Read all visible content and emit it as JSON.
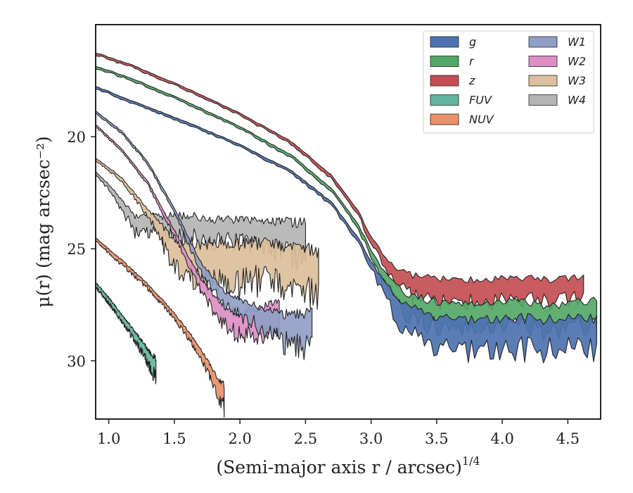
{
  "chart_data": {
    "type": "area",
    "title": "",
    "xlabel": "(Semi-major axis r / arcsec)",
    "xlabel_superscript": "1/4",
    "ylabel": "μ(r) (mag arcsec⁻²)",
    "xlim": [
      0.9,
      4.75
    ],
    "ylim": [
      32.6,
      15.0
    ],
    "y_inverted": true,
    "grid": false,
    "legend_position": "top-right",
    "legend_columns": 2,
    "xticks": [
      1.0,
      1.5,
      2.0,
      2.5,
      3.0,
      3.5,
      4.0,
      4.5
    ],
    "xtick_labels": [
      "1.0",
      "1.5",
      "2.0",
      "2.5",
      "3.0",
      "3.5",
      "4.0",
      "4.5"
    ],
    "yticks": [
      20,
      25,
      30
    ],
    "ytick_labels": [
      "20",
      "25",
      "30"
    ],
    "series": [
      {
        "name": "g",
        "color": "#4c72b0",
        "x_start": 0.9,
        "x_end": 4.72,
        "x": [
          0.9,
          1.2,
          1.6,
          2.0,
          2.4,
          2.7,
          2.9,
          3.0,
          3.1,
          3.2,
          3.3,
          3.5,
          3.8,
          4.1,
          4.4,
          4.72
        ],
        "y": [
          17.8,
          18.5,
          19.4,
          20.4,
          21.6,
          23.0,
          24.6,
          25.7,
          26.8,
          27.6,
          28.3,
          28.8,
          28.9,
          28.8,
          28.9,
          28.8
        ],
        "width": [
          0.1,
          0.1,
          0.1,
          0.1,
          0.12,
          0.15,
          0.2,
          0.3,
          0.6,
          1.0,
          1.3,
          1.4,
          1.4,
          1.4,
          1.4,
          1.4
        ]
      },
      {
        "name": "r",
        "color": "#55a868",
        "x_start": 0.9,
        "x_end": 4.72,
        "x": [
          0.9,
          1.2,
          1.6,
          2.0,
          2.4,
          2.7,
          2.9,
          3.0,
          3.1,
          3.2,
          3.3,
          3.5,
          3.8,
          4.1,
          4.4,
          4.72
        ],
        "y": [
          16.9,
          17.5,
          18.5,
          19.6,
          20.9,
          22.4,
          24.0,
          25.2,
          26.3,
          27.1,
          27.6,
          27.9,
          28.0,
          27.9,
          28.1,
          27.8
        ],
        "width": [
          0.1,
          0.1,
          0.1,
          0.1,
          0.12,
          0.15,
          0.2,
          0.3,
          0.5,
          0.8,
          1.0,
          1.1,
          1.1,
          1.1,
          1.1,
          1.1
        ]
      },
      {
        "name": "z",
        "color": "#c44e52",
        "x_start": 0.9,
        "x_end": 4.62,
        "x": [
          0.9,
          1.2,
          1.6,
          2.0,
          2.4,
          2.7,
          2.9,
          3.0,
          3.1,
          3.2,
          3.3,
          3.5,
          3.8,
          4.1,
          4.4,
          4.62
        ],
        "y": [
          16.3,
          16.9,
          17.9,
          19.0,
          20.3,
          21.8,
          23.4,
          24.6,
          25.6,
          26.3,
          26.6,
          26.8,
          26.9,
          26.8,
          26.9,
          26.8
        ],
        "width": [
          0.1,
          0.1,
          0.1,
          0.1,
          0.12,
          0.15,
          0.2,
          0.3,
          0.5,
          0.7,
          0.9,
          1.0,
          1.0,
          1.0,
          1.0,
          1.0
        ]
      },
      {
        "name": "FUV",
        "color": "#64b5a0",
        "x_start": 0.9,
        "x_end": 1.36,
        "x": [
          0.9,
          1.0,
          1.1,
          1.2,
          1.3,
          1.36
        ],
        "y": [
          26.6,
          27.3,
          28.1,
          28.9,
          29.8,
          30.4
        ],
        "width": [
          0.2,
          0.25,
          0.3,
          0.4,
          0.6,
          0.9
        ]
      },
      {
        "name": "NUV",
        "color": "#e8906a",
        "x_start": 0.9,
        "x_end": 1.88,
        "x": [
          0.9,
          1.1,
          1.3,
          1.5,
          1.65,
          1.75,
          1.82,
          1.88
        ],
        "y": [
          24.6,
          25.6,
          26.7,
          28.0,
          29.2,
          30.2,
          31.0,
          31.6
        ],
        "width": [
          0.15,
          0.2,
          0.2,
          0.25,
          0.35,
          0.5,
          0.7,
          1.0
        ]
      },
      {
        "name": "W1",
        "color": "#8fa0c6",
        "x_start": 0.9,
        "x_end": 2.55,
        "x": [
          0.9,
          1.1,
          1.3,
          1.5,
          1.7,
          1.9,
          2.1,
          2.3,
          2.45,
          2.55
        ],
        "y": [
          18.9,
          19.8,
          21.2,
          23.3,
          25.8,
          27.3,
          27.9,
          28.5,
          28.7,
          28.4
        ],
        "width": [
          0.1,
          0.1,
          0.12,
          0.2,
          0.4,
          0.6,
          0.8,
          1.2,
          1.5,
          1.4
        ]
      },
      {
        "name": "W2",
        "color": "#dc8fc4",
        "x_start": 0.9,
        "x_end": 2.3,
        "x": [
          0.9,
          1.1,
          1.3,
          1.5,
          1.7,
          1.85,
          2.0,
          2.15,
          2.3
        ],
        "y": [
          19.5,
          20.6,
          22.1,
          24.3,
          26.6,
          27.8,
          28.4,
          28.2,
          27.8
        ],
        "width": [
          0.1,
          0.1,
          0.15,
          0.25,
          0.5,
          0.8,
          1.0,
          1.2,
          1.2
        ]
      },
      {
        "name": "W3",
        "color": "#dcbf9c",
        "x_start": 0.9,
        "x_end": 2.6,
        "x": [
          0.9,
          1.1,
          1.3,
          1.5,
          1.7,
          1.9,
          2.1,
          2.3,
          2.45,
          2.6
        ],
        "y": [
          21.0,
          21.9,
          23.4,
          25.2,
          25.6,
          25.7,
          25.6,
          25.8,
          25.7,
          26.1
        ],
        "width": [
          0.1,
          0.15,
          0.3,
          1.2,
          1.6,
          1.8,
          1.7,
          1.8,
          1.8,
          1.9
        ]
      },
      {
        "name": "W4",
        "color": "#b4b4b4",
        "x_start": 0.9,
        "x_end": 2.5,
        "x": [
          0.9,
          1.05,
          1.2,
          1.4,
          1.6,
          1.8,
          2.0,
          2.2,
          2.35,
          2.5
        ],
        "y": [
          21.6,
          22.6,
          23.9,
          24.0,
          24.0,
          24.2,
          24.2,
          24.4,
          24.5,
          24.6
        ],
        "width": [
          0.1,
          0.3,
          0.7,
          0.9,
          1.0,
          1.0,
          1.0,
          1.2,
          1.4,
          1.6
        ]
      }
    ]
  }
}
